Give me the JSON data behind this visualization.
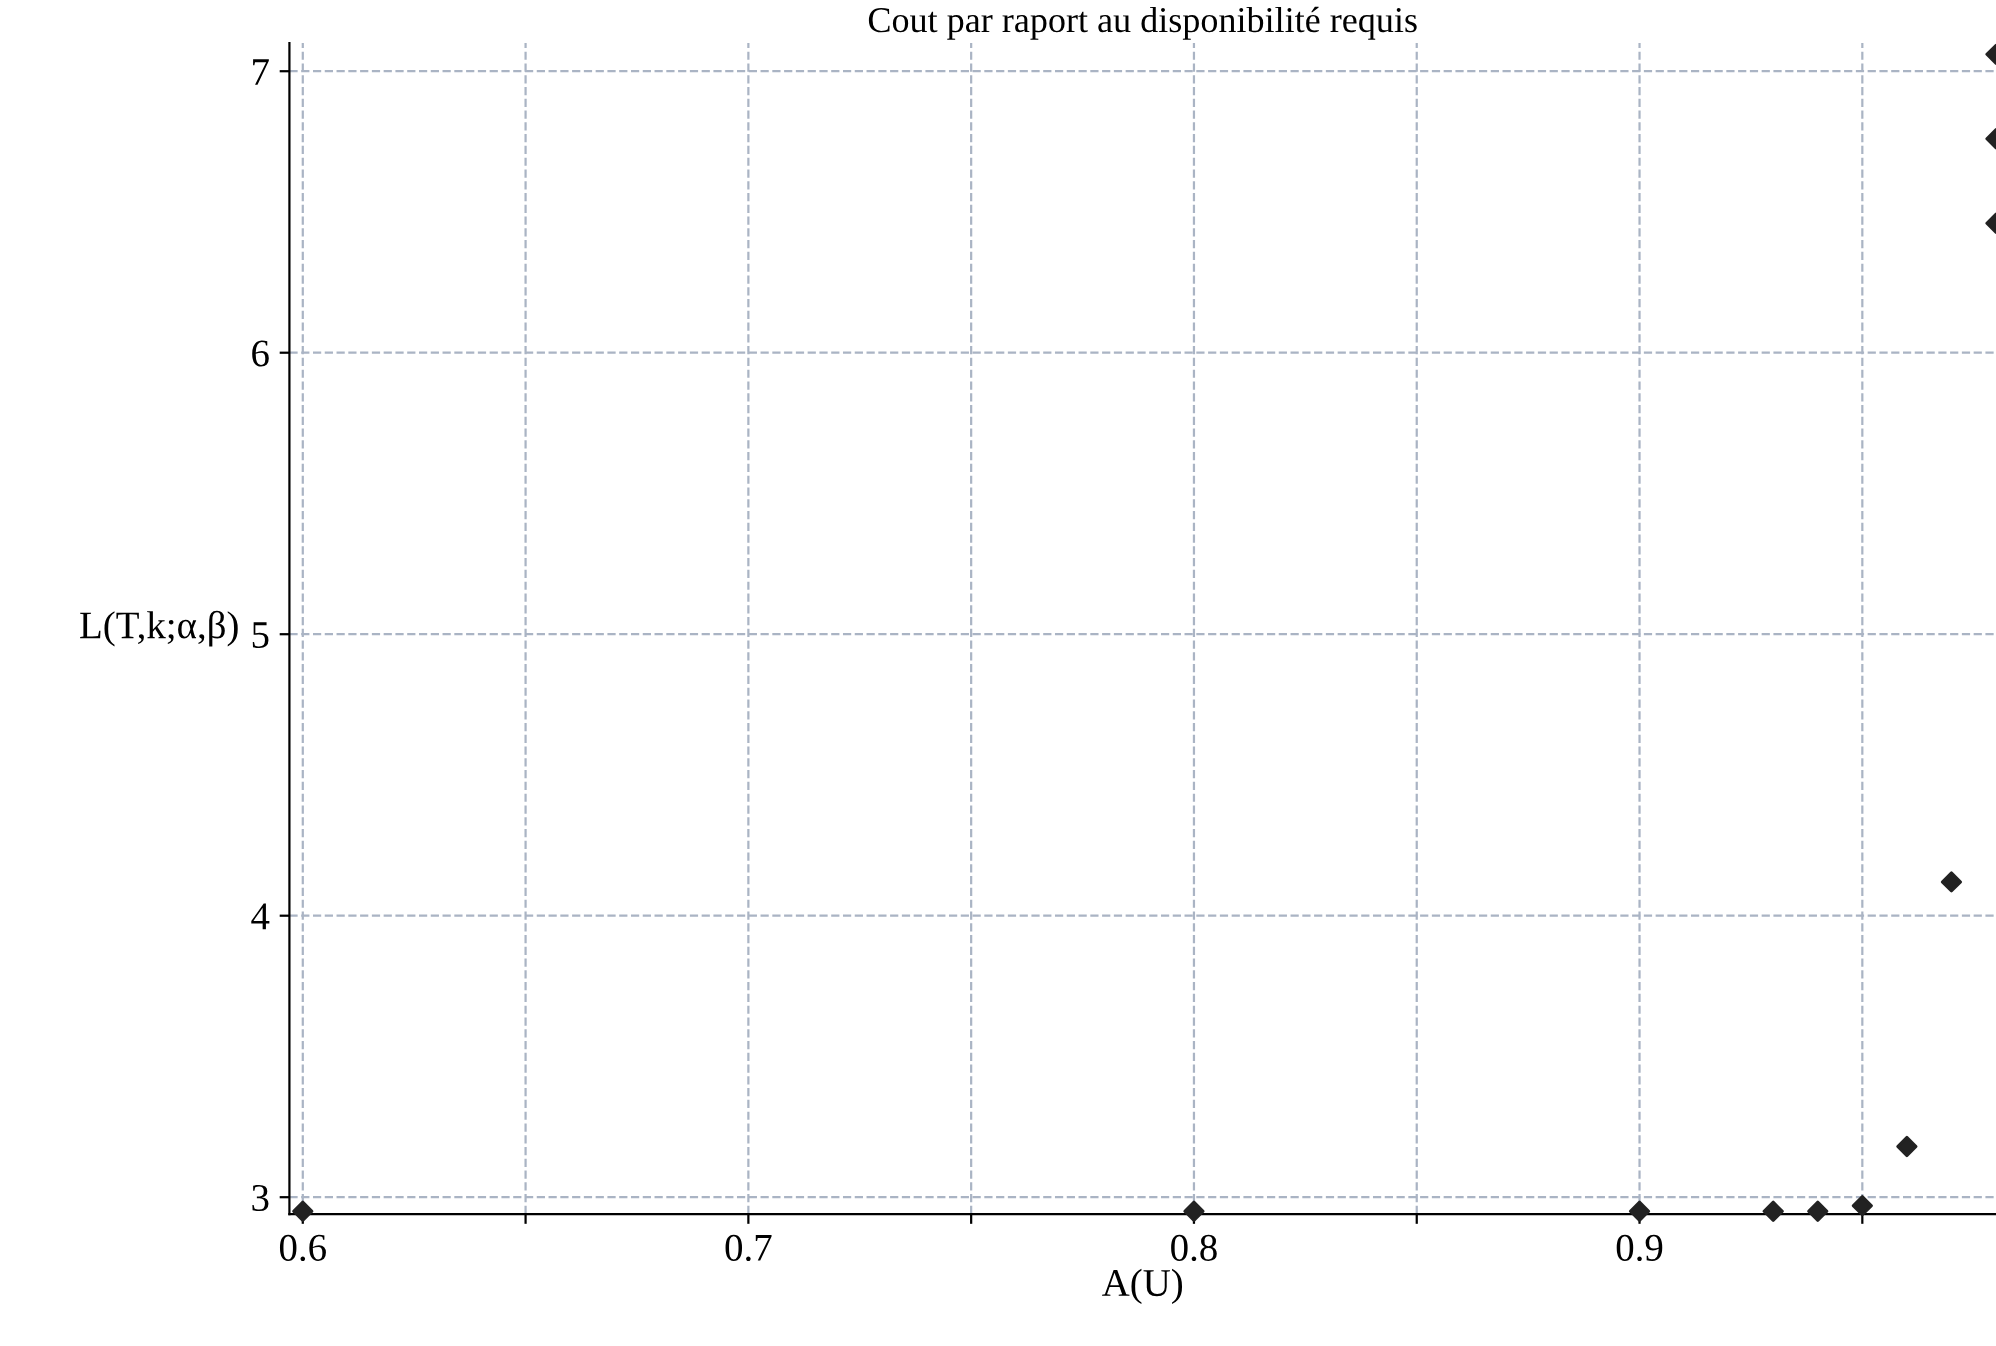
{
  "chart_data": {
    "type": "scatter",
    "title": "Cout par raport au disponibilité requis",
    "xlabel": "A(U)",
    "ylabel": "L(T,k;α,β)",
    "x": [
      0.6,
      0.8,
      0.9,
      0.93,
      0.94,
      0.95,
      0.96,
      0.97,
      0.98,
      0.98,
      0.98
    ],
    "series": [
      {
        "color": "#222222",
        "values": [
          2.95,
          2.95,
          2.95,
          2.95,
          2.95,
          2.97,
          3.18,
          4.12,
          6.46,
          6.76,
          7.06
        ]
      }
    ],
    "xlim": [
      0.597,
      0.98
    ],
    "ylim": [
      2.94,
      7.1
    ],
    "xticks": [
      0.6,
      {
        "value": 0.65,
        "label": null
      },
      0.7,
      {
        "value": 0.75,
        "label": null
      },
      0.8,
      {
        "value": 0.85,
        "label": null
      },
      0.9,
      {
        "value": 0.95,
        "label": null
      }
    ],
    "yticks": [
      3,
      4,
      5,
      6,
      7
    ],
    "grid": true,
    "marker": "diamond",
    "legend": false
  }
}
